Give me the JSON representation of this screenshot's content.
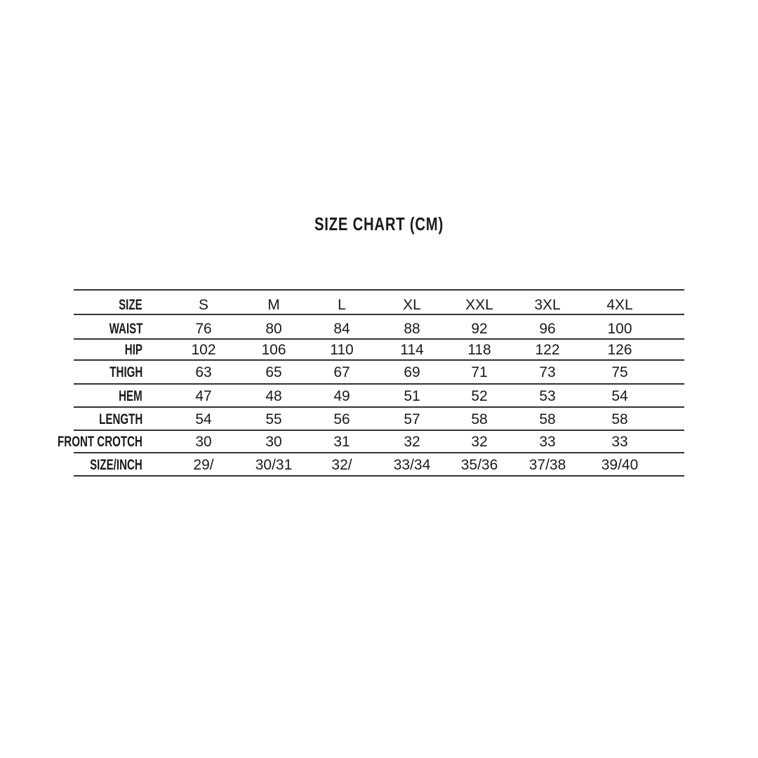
{
  "title": "SIZE CHART (CM)",
  "rows": [
    {
      "label": "SIZE",
      "values": [
        "S",
        "M",
        "L",
        "XL",
        "XXL",
        "3XL",
        "4XL"
      ]
    },
    {
      "label": "WAIST",
      "values": [
        "76",
        "80",
        "84",
        "88",
        "92",
        "96",
        "100"
      ]
    },
    {
      "label": "HIP",
      "values": [
        "102",
        "106",
        "110",
        "114",
        "118",
        "122",
        "126"
      ]
    },
    {
      "label": "THIGH",
      "values": [
        "63",
        "65",
        "67",
        "69",
        "71",
        "73",
        "75"
      ]
    },
    {
      "label": "HEM",
      "values": [
        "47",
        "48",
        "49",
        "51",
        "52",
        "53",
        "54"
      ]
    },
    {
      "label": "LENGTH",
      "values": [
        "54",
        "55",
        "56",
        "57",
        "58",
        "58",
        "58"
      ]
    },
    {
      "label": "FRONT CROTCH",
      "values": [
        "30",
        "30",
        "31",
        "32",
        "32",
        "33",
        "33"
      ]
    },
    {
      "label": "SIZE/INCH",
      "values": [
        "29/",
        "30/31",
        "32/",
        "33/34",
        "35/36",
        "37/38",
        "39/40"
      ]
    }
  ]
}
